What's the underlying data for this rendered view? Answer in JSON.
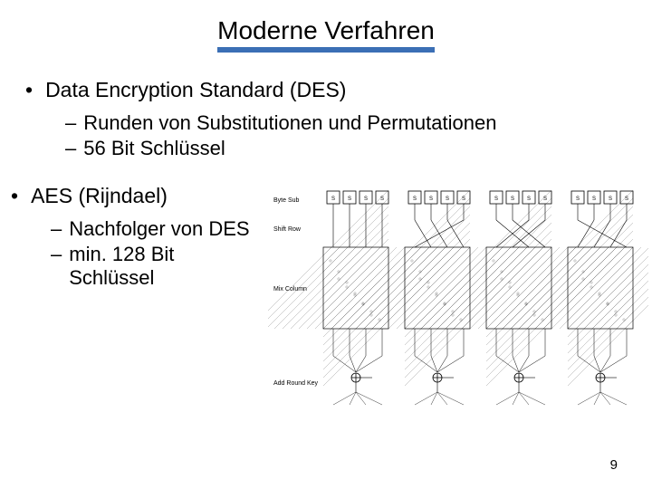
{
  "title": "Moderne Verfahren",
  "title_underline_color": "#3b6fb5",
  "b1": {
    "heading": "Data Encryption Standard (DES)",
    "subs": [
      "Runden von Substitutionen und Permutationen",
      "56 Bit Schlüssel"
    ]
  },
  "b2": {
    "heading": "AES (Rijndael)",
    "subs": [
      "Nachfolger von DES",
      "min. 128 Bit Schlüssel"
    ]
  },
  "diagram": {
    "labels": {
      "byte_sub": "Byte Sub",
      "shift_row": "Shift Row",
      "mix_column": "Mix Column",
      "add_round_key": "Add Round Key"
    },
    "stroke": "#000000",
    "label_fontsize": 7,
    "box_fontsize": 6,
    "groups": 4,
    "boxes_per_group": 4,
    "box_label": "S",
    "shift_offsets": [
      0,
      1,
      2,
      3
    ],
    "xor_symbol": "⊕"
  },
  "page_number": "9",
  "colors": {
    "text": "#000000",
    "background": "#ffffff"
  }
}
